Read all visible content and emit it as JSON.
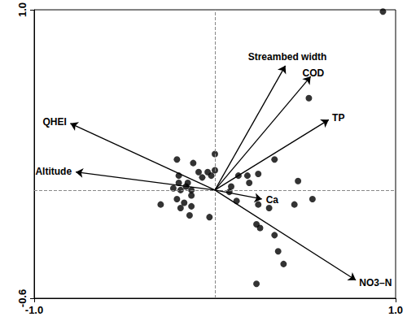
{
  "chart_data": {
    "type": "biplot",
    "xlim": [
      -1,
      1
    ],
    "ylim": [
      -0.6,
      1
    ],
    "xticks": [
      {
        "value": -1,
        "label": "-1.0"
      },
      {
        "value": 1,
        "label": "1.0"
      }
    ],
    "yticks": [
      {
        "value": -0.6,
        "label": "-0.6"
      },
      {
        "value": 1,
        "label": "1.0"
      }
    ],
    "grid": false,
    "reference_lines": {
      "x": 0,
      "y": 0
    },
    "color": "#000000",
    "marker": "circle",
    "points": {
      "x": [
        0.93,
        0.52,
        0.33,
        0.46,
        0.24,
        0.18,
        0.13,
        0.19,
        0.09,
        0.08,
        0.12,
        0.24,
        0.3,
        0.23,
        0.25,
        0.33,
        0.44,
        0.54,
        0.35,
        0.38,
        0.23,
        0.0,
        -0.04,
        0.0,
        -0.02,
        -0.07,
        -0.09,
        -0.12,
        -0.21,
        -0.15,
        -0.2,
        -0.2,
        -0.16,
        -0.13,
        -0.19,
        -0.23,
        -0.13,
        -0.21,
        -0.17,
        -0.13,
        -0.19,
        -0.14,
        -0.03,
        -0.3
      ],
      "y": [
        0.99,
        0.51,
        0.17,
        0.05,
        0.09,
        0.08,
        0.08,
        0.04,
        0.02,
        -0.01,
        -0.06,
        -0.08,
        -0.1,
        -0.19,
        -0.21,
        -0.25,
        -0.08,
        -0.05,
        -0.34,
        -0.41,
        -0.52,
        0.2,
        0.1,
        0.11,
        0.08,
        0.07,
        0.1,
        0.15,
        0.17,
        0.04,
        0.08,
        0.04,
        0.02,
        0.0,
        0.0,
        0.01,
        -0.03,
        -0.05,
        -0.07,
        -0.09,
        -0.1,
        -0.14,
        -0.15,
        -0.08
      ]
    },
    "arrows": [
      {
        "label": "Streambed width",
        "x": 0.39,
        "y": 0.69
      },
      {
        "label": "COD",
        "x": 0.53,
        "y": 0.63
      },
      {
        "label": "TP",
        "x": 0.63,
        "y": 0.39
      },
      {
        "label": "QHEI",
        "x": -0.8,
        "y": 0.37
      },
      {
        "label": "Altitude",
        "x": -0.77,
        "y": 0.1
      },
      {
        "label": "Ca",
        "x": 0.26,
        "y": -0.05
      },
      {
        "label": "NO3–N",
        "x": 0.78,
        "y": -0.5
      }
    ]
  }
}
